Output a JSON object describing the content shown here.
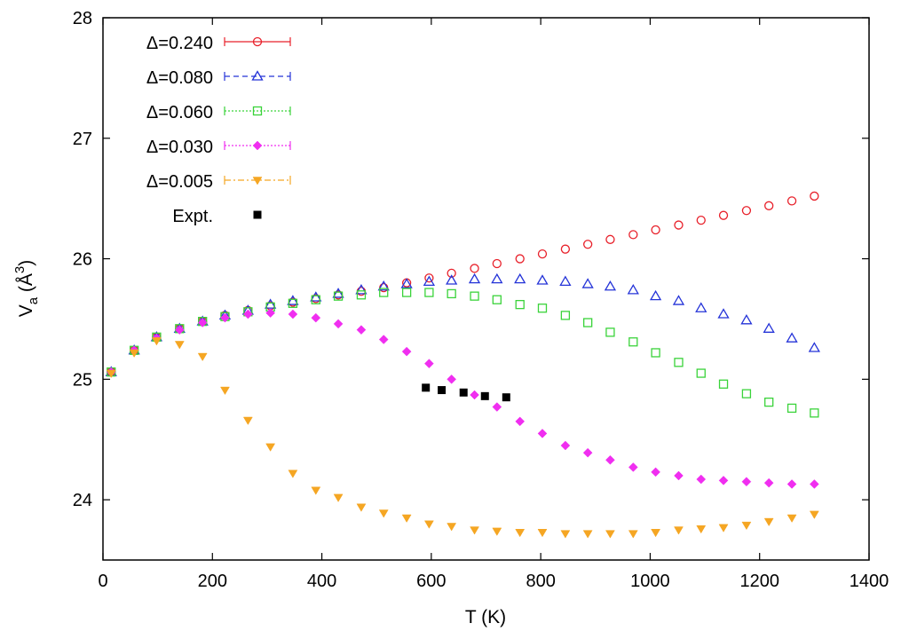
{
  "chart_data": {
    "type": "scatter",
    "title": "",
    "xlabel": "T (K)",
    "ylabel_base": "V",
    "ylabel_sub": "a",
    "ylabel_unit_open": " (Å",
    "ylabel_unit_sup": "3",
    "ylabel_unit_close": ")",
    "xlim": [
      0,
      1400
    ],
    "ylim": [
      23.5,
      28
    ],
    "xticks": [
      0,
      200,
      400,
      600,
      800,
      1000,
      1200,
      1400
    ],
    "yticks": [
      24,
      25,
      26,
      27,
      28
    ],
    "legend_position": "top-left",
    "series": [
      {
        "name": "Δ=0.240",
        "color": "#e8202a",
        "marker": "circle",
        "legend_line": "solid",
        "x": [
          15,
          57,
          98,
          140,
          182,
          223,
          265,
          306,
          347,
          389,
          430,
          472,
          513,
          555,
          596,
          637,
          679,
          720,
          762,
          803,
          845,
          886,
          927,
          969,
          1010,
          1052,
          1093,
          1134,
          1176,
          1217,
          1259,
          1300
        ],
        "y": [
          25.06,
          25.24,
          25.35,
          25.42,
          25.48,
          25.53,
          25.57,
          25.61,
          25.64,
          25.67,
          25.7,
          25.73,
          25.76,
          25.8,
          25.84,
          25.88,
          25.92,
          25.96,
          26.0,
          26.04,
          26.08,
          26.12,
          26.16,
          26.2,
          26.24,
          26.28,
          26.32,
          26.36,
          26.4,
          26.44,
          26.48,
          26.52
        ]
      },
      {
        "name": "Δ=0.080",
        "color": "#2433d8",
        "marker": "triangle",
        "legend_line": "dashed",
        "x": [
          15,
          57,
          98,
          140,
          182,
          223,
          265,
          306,
          347,
          389,
          430,
          472,
          513,
          555,
          596,
          637,
          679,
          720,
          762,
          803,
          845,
          886,
          927,
          969,
          1010,
          1052,
          1093,
          1134,
          1176,
          1217,
          1259,
          1300
        ],
        "y": [
          25.06,
          25.24,
          25.35,
          25.42,
          25.48,
          25.53,
          25.57,
          25.62,
          25.65,
          25.68,
          25.71,
          25.74,
          25.77,
          25.79,
          25.81,
          25.82,
          25.83,
          25.83,
          25.83,
          25.82,
          25.81,
          25.79,
          25.77,
          25.74,
          25.69,
          25.65,
          25.59,
          25.54,
          25.49,
          25.42,
          25.34,
          25.26
        ]
      },
      {
        "name": "Δ=0.060",
        "color": "#3ad33a",
        "marker": "square-open",
        "legend_line": "dotted",
        "x": [
          15,
          57,
          98,
          140,
          182,
          223,
          265,
          306,
          347,
          389,
          430,
          472,
          513,
          555,
          596,
          637,
          679,
          720,
          762,
          803,
          845,
          886,
          927,
          969,
          1010,
          1052,
          1093,
          1134,
          1176,
          1217,
          1259,
          1300
        ],
        "y": [
          25.06,
          25.24,
          25.35,
          25.42,
          25.48,
          25.52,
          25.56,
          25.6,
          25.63,
          25.66,
          25.69,
          25.7,
          25.72,
          25.72,
          25.72,
          25.71,
          25.69,
          25.66,
          25.62,
          25.59,
          25.53,
          25.47,
          25.39,
          25.31,
          25.22,
          25.14,
          25.05,
          24.96,
          24.88,
          24.81,
          24.76,
          24.72
        ]
      },
      {
        "name": "Δ=0.030",
        "color": "#f02ef0",
        "marker": "diamond",
        "legend_line": "dotted",
        "x": [
          15,
          57,
          98,
          140,
          182,
          223,
          265,
          306,
          347,
          389,
          430,
          472,
          513,
          555,
          596,
          637,
          679,
          720,
          762,
          803,
          845,
          886,
          927,
          969,
          1010,
          1052,
          1093,
          1134,
          1176,
          1217,
          1259,
          1300
        ],
        "y": [
          25.06,
          25.24,
          25.34,
          25.41,
          25.47,
          25.51,
          25.54,
          25.55,
          25.54,
          25.51,
          25.46,
          25.41,
          25.33,
          25.23,
          25.13,
          25.0,
          24.87,
          24.77,
          24.65,
          24.55,
          24.45,
          24.39,
          24.33,
          24.27,
          24.23,
          24.2,
          24.17,
          24.16,
          24.15,
          24.14,
          24.13,
          24.13
        ]
      },
      {
        "name": "Δ=0.005",
        "color": "#f5a623",
        "marker": "triangle-down",
        "legend_line": "dashdot",
        "x": [
          15,
          57,
          98,
          140,
          182,
          223,
          265,
          306,
          347,
          389,
          430,
          472,
          513,
          555,
          596,
          637,
          679,
          720,
          762,
          803,
          845,
          886,
          927,
          969,
          1010,
          1052,
          1093,
          1134,
          1176,
          1217,
          1259,
          1300
        ],
        "y": [
          25.05,
          25.22,
          25.32,
          25.29,
          25.19,
          24.91,
          24.66,
          24.44,
          24.22,
          24.08,
          24.02,
          23.94,
          23.89,
          23.85,
          23.8,
          23.78,
          23.75,
          23.74,
          23.73,
          23.73,
          23.72,
          23.72,
          23.72,
          23.72,
          23.73,
          23.75,
          23.76,
          23.77,
          23.79,
          23.82,
          23.85,
          23.88
        ]
      },
      {
        "name": "Expt.",
        "color": "#000000",
        "marker": "square",
        "legend_line": "none",
        "x": [
          590,
          619,
          659,
          698,
          737
        ],
        "y": [
          24.93,
          24.91,
          24.89,
          24.86,
          24.85
        ]
      }
    ]
  }
}
